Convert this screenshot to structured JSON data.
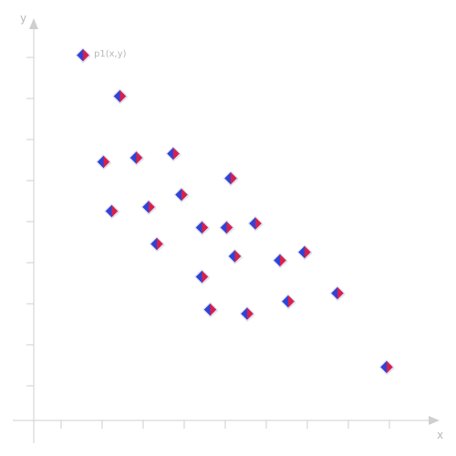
{
  "chart_data": {
    "type": "scatter",
    "title": "",
    "xlabel": "x",
    "ylabel": "y",
    "xlim": [
      0,
      10
    ],
    "ylim": [
      0,
      9
    ],
    "grid": false,
    "legend_position": "top-left",
    "marker": "diamond",
    "colors": {
      "marker_left": "#2f43d6",
      "marker_right": "#d6204b",
      "marker_border": "#d8dcf2",
      "axis": "#cfcfcf",
      "text": "#b8b8b8"
    },
    "series": [
      {
        "name": "p1(x,y)",
        "points": [
          {
            "x": 2.1,
            "y": 7.9
          },
          {
            "x": 1.7,
            "y": 6.3
          },
          {
            "x": 2.5,
            "y": 6.4
          },
          {
            "x": 3.4,
            "y": 6.5
          },
          {
            "x": 1.9,
            "y": 5.1
          },
          {
            "x": 2.8,
            "y": 5.2
          },
          {
            "x": 3.6,
            "y": 5.5
          },
          {
            "x": 4.8,
            "y": 5.9
          },
          {
            "x": 3.0,
            "y": 4.3
          },
          {
            "x": 4.1,
            "y": 4.7
          },
          {
            "x": 4.7,
            "y": 4.7
          },
          {
            "x": 5.4,
            "y": 4.8
          },
          {
            "x": 4.9,
            "y": 4.0
          },
          {
            "x": 6.0,
            "y": 3.9
          },
          {
            "x": 6.6,
            "y": 4.1
          },
          {
            "x": 4.1,
            "y": 3.5
          },
          {
            "x": 4.3,
            "y": 2.7
          },
          {
            "x": 5.2,
            "y": 2.6
          },
          {
            "x": 6.2,
            "y": 2.9
          },
          {
            "x": 7.4,
            "y": 3.1
          },
          {
            "x": 8.6,
            "y": 1.3
          }
        ]
      }
    ],
    "legend_marker": {
      "x": 1.2,
      "y": 8.9
    }
  }
}
